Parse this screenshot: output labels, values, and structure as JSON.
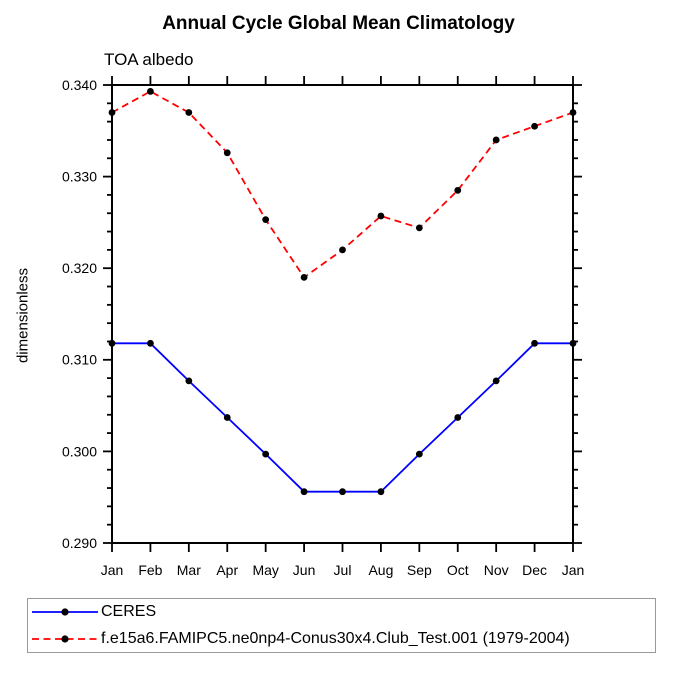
{
  "title": "Annual Cycle Global Mean Climatology",
  "subtitle": "TOA albedo",
  "colors": {
    "axis": "#000000",
    "marker": "#000000",
    "ceres_line": "#0000ff",
    "model_line": "#ff0000",
    "legend_border": "#999999"
  },
  "chart_data": {
    "type": "line",
    "title": "Annual Cycle Global Mean Climatology",
    "subtitle": "TOA albedo",
    "ylabel": "dimensionless",
    "xlabel": "",
    "x": [
      "Jan",
      "Feb",
      "Mar",
      "Apr",
      "May",
      "Jun",
      "Jul",
      "Aug",
      "Sep",
      "Oct",
      "Nov",
      "Dec",
      "Jan"
    ],
    "series": [
      {
        "name": "CERES",
        "color": "#0000ff",
        "line_style": "solid",
        "marker": "filled-circle",
        "marker_color": "#000000",
        "values": [
          0.3118,
          0.3118,
          0.3077,
          0.3037,
          0.2997,
          0.2956,
          0.2956,
          0.2956,
          0.2997,
          0.3037,
          0.3077,
          0.3118,
          0.3118
        ]
      },
      {
        "name": "f.e15a6.FAMIPC5.ne0np4-Conus30x4.Club_Test.001 (1979-2004)",
        "color": "#ff0000",
        "line_style": "dashed",
        "marker": "filled-circle",
        "marker_color": "#000000",
        "values": [
          0.337,
          0.3393,
          0.337,
          0.3326,
          0.3253,
          0.319,
          0.322,
          0.3257,
          0.3244,
          0.3285,
          0.334,
          0.3355,
          0.337
        ]
      }
    ],
    "ylim": [
      0.29,
      0.34
    ],
    "y_major_step": 0.01,
    "y_minor_step": 0.002,
    "y_tick_format_decimals": 3,
    "grid": false,
    "ticks": "outward-all-sides",
    "legend_position": "bottom"
  }
}
